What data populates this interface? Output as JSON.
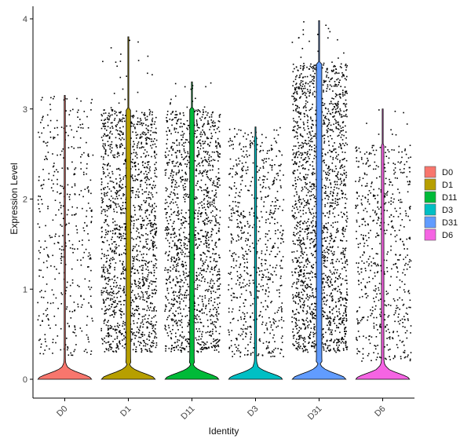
{
  "chart_data": {
    "type": "violin",
    "xlabel": "Identity",
    "ylabel": "Expression Level",
    "ylim": [
      -0.2,
      4.2
    ],
    "yticks": [
      0,
      1,
      2,
      3,
      4
    ],
    "grid": false,
    "legend_position": "right",
    "categories": [
      "D0",
      "D1",
      "D11",
      "D3",
      "D31",
      "D6"
    ],
    "series": [
      {
        "name": "D0",
        "color": "#F8766D",
        "max": 3.15,
        "zero_fraction": 0.72,
        "nonzero_range": [
          0.25,
          3.1
        ],
        "points": 420
      },
      {
        "name": "D1",
        "color": "#B79F00",
        "max": 3.8,
        "zero_fraction": 0.4,
        "nonzero_range": [
          0.3,
          3.0
        ],
        "points": 1500
      },
      {
        "name": "D11",
        "color": "#00BA38",
        "max": 3.3,
        "zero_fraction": 0.4,
        "nonzero_range": [
          0.3,
          3.0
        ],
        "points": 1400
      },
      {
        "name": "D3",
        "color": "#00BFC4",
        "max": 2.8,
        "zero_fraction": 0.6,
        "nonzero_range": [
          0.25,
          2.7
        ],
        "points": 700
      },
      {
        "name": "D31",
        "color": "#619CFF",
        "max": 3.98,
        "zero_fraction": 0.35,
        "nonzero_range": [
          0.3,
          3.5
        ],
        "points": 1900
      },
      {
        "name": "D6",
        "color": "#F564E3",
        "max": 3.0,
        "zero_fraction": 0.55,
        "nonzero_range": [
          0.2,
          2.6
        ],
        "points": 600
      }
    ]
  }
}
